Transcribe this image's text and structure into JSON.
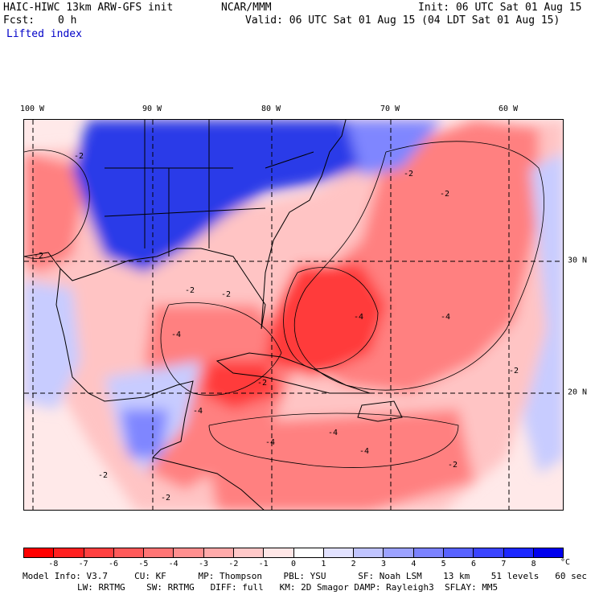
{
  "header": {
    "model": "HAIC-HIWC 13km ARW-GFS init",
    "org": "NCAR/MMM",
    "init": "Init: 06 UTC Sat 01 Aug 15",
    "fcst_label": "Fcst:",
    "fcst_value": "0 h",
    "valid": "Valid: 06 UTC Sat 01 Aug 15 (04 LDT Sat 01 Aug 15)",
    "field": "Lifted index"
  },
  "axes": {
    "lon_labels": [
      "100 W",
      "90 W",
      "80 W",
      "70 W",
      "60 W"
    ],
    "lat_labels": [
      "30 N",
      "20 N"
    ]
  },
  "map": {
    "region": "Gulf of Mexico / Caribbean / western Atlantic",
    "contour_labels": [
      "-2",
      "-4"
    ],
    "colors": {
      "strong_neg": "#ff3b3b",
      "mod_neg": "#ff8080",
      "weak_neg": "#ffc4c4",
      "neutral": "#ffe9e9",
      "weak_pos": "#c8ccff",
      "mod_pos": "#7f86ff",
      "strong_pos": "#2c3be8"
    }
  },
  "colorbar": {
    "ticks": [
      "-8",
      "-7",
      "-6",
      "-5",
      "-4",
      "-3",
      "-2",
      "-1",
      "0",
      "1",
      "2",
      "3",
      "4",
      "5",
      "6",
      "7",
      "8"
    ],
    "unit": "°C",
    "colors": [
      "#ff0000",
      "#ff2020",
      "#ff4040",
      "#ff5a5a",
      "#ff7575",
      "#ff8f8f",
      "#ffaaaa",
      "#ffc8c8",
      "#ffe6e6",
      "#ffffff",
      "#e2e2ff",
      "#c0c4ff",
      "#9ca2ff",
      "#7b82ff",
      "#5862ff",
      "#3a44ff",
      "#1c27ff",
      "#0000ee"
    ]
  },
  "footer": {
    "line1": "Model Info: V3.7     CU: KF      MP: Thompson    PBL: YSU      SF: Noah LSM    13 km    51 levels   60 sec",
    "line2": "LW: RRTMG    SW: RRTMG   DIFF: full   KM: 2D Smagor DAMP: Rayleigh3  SFLAY: MM5"
  }
}
